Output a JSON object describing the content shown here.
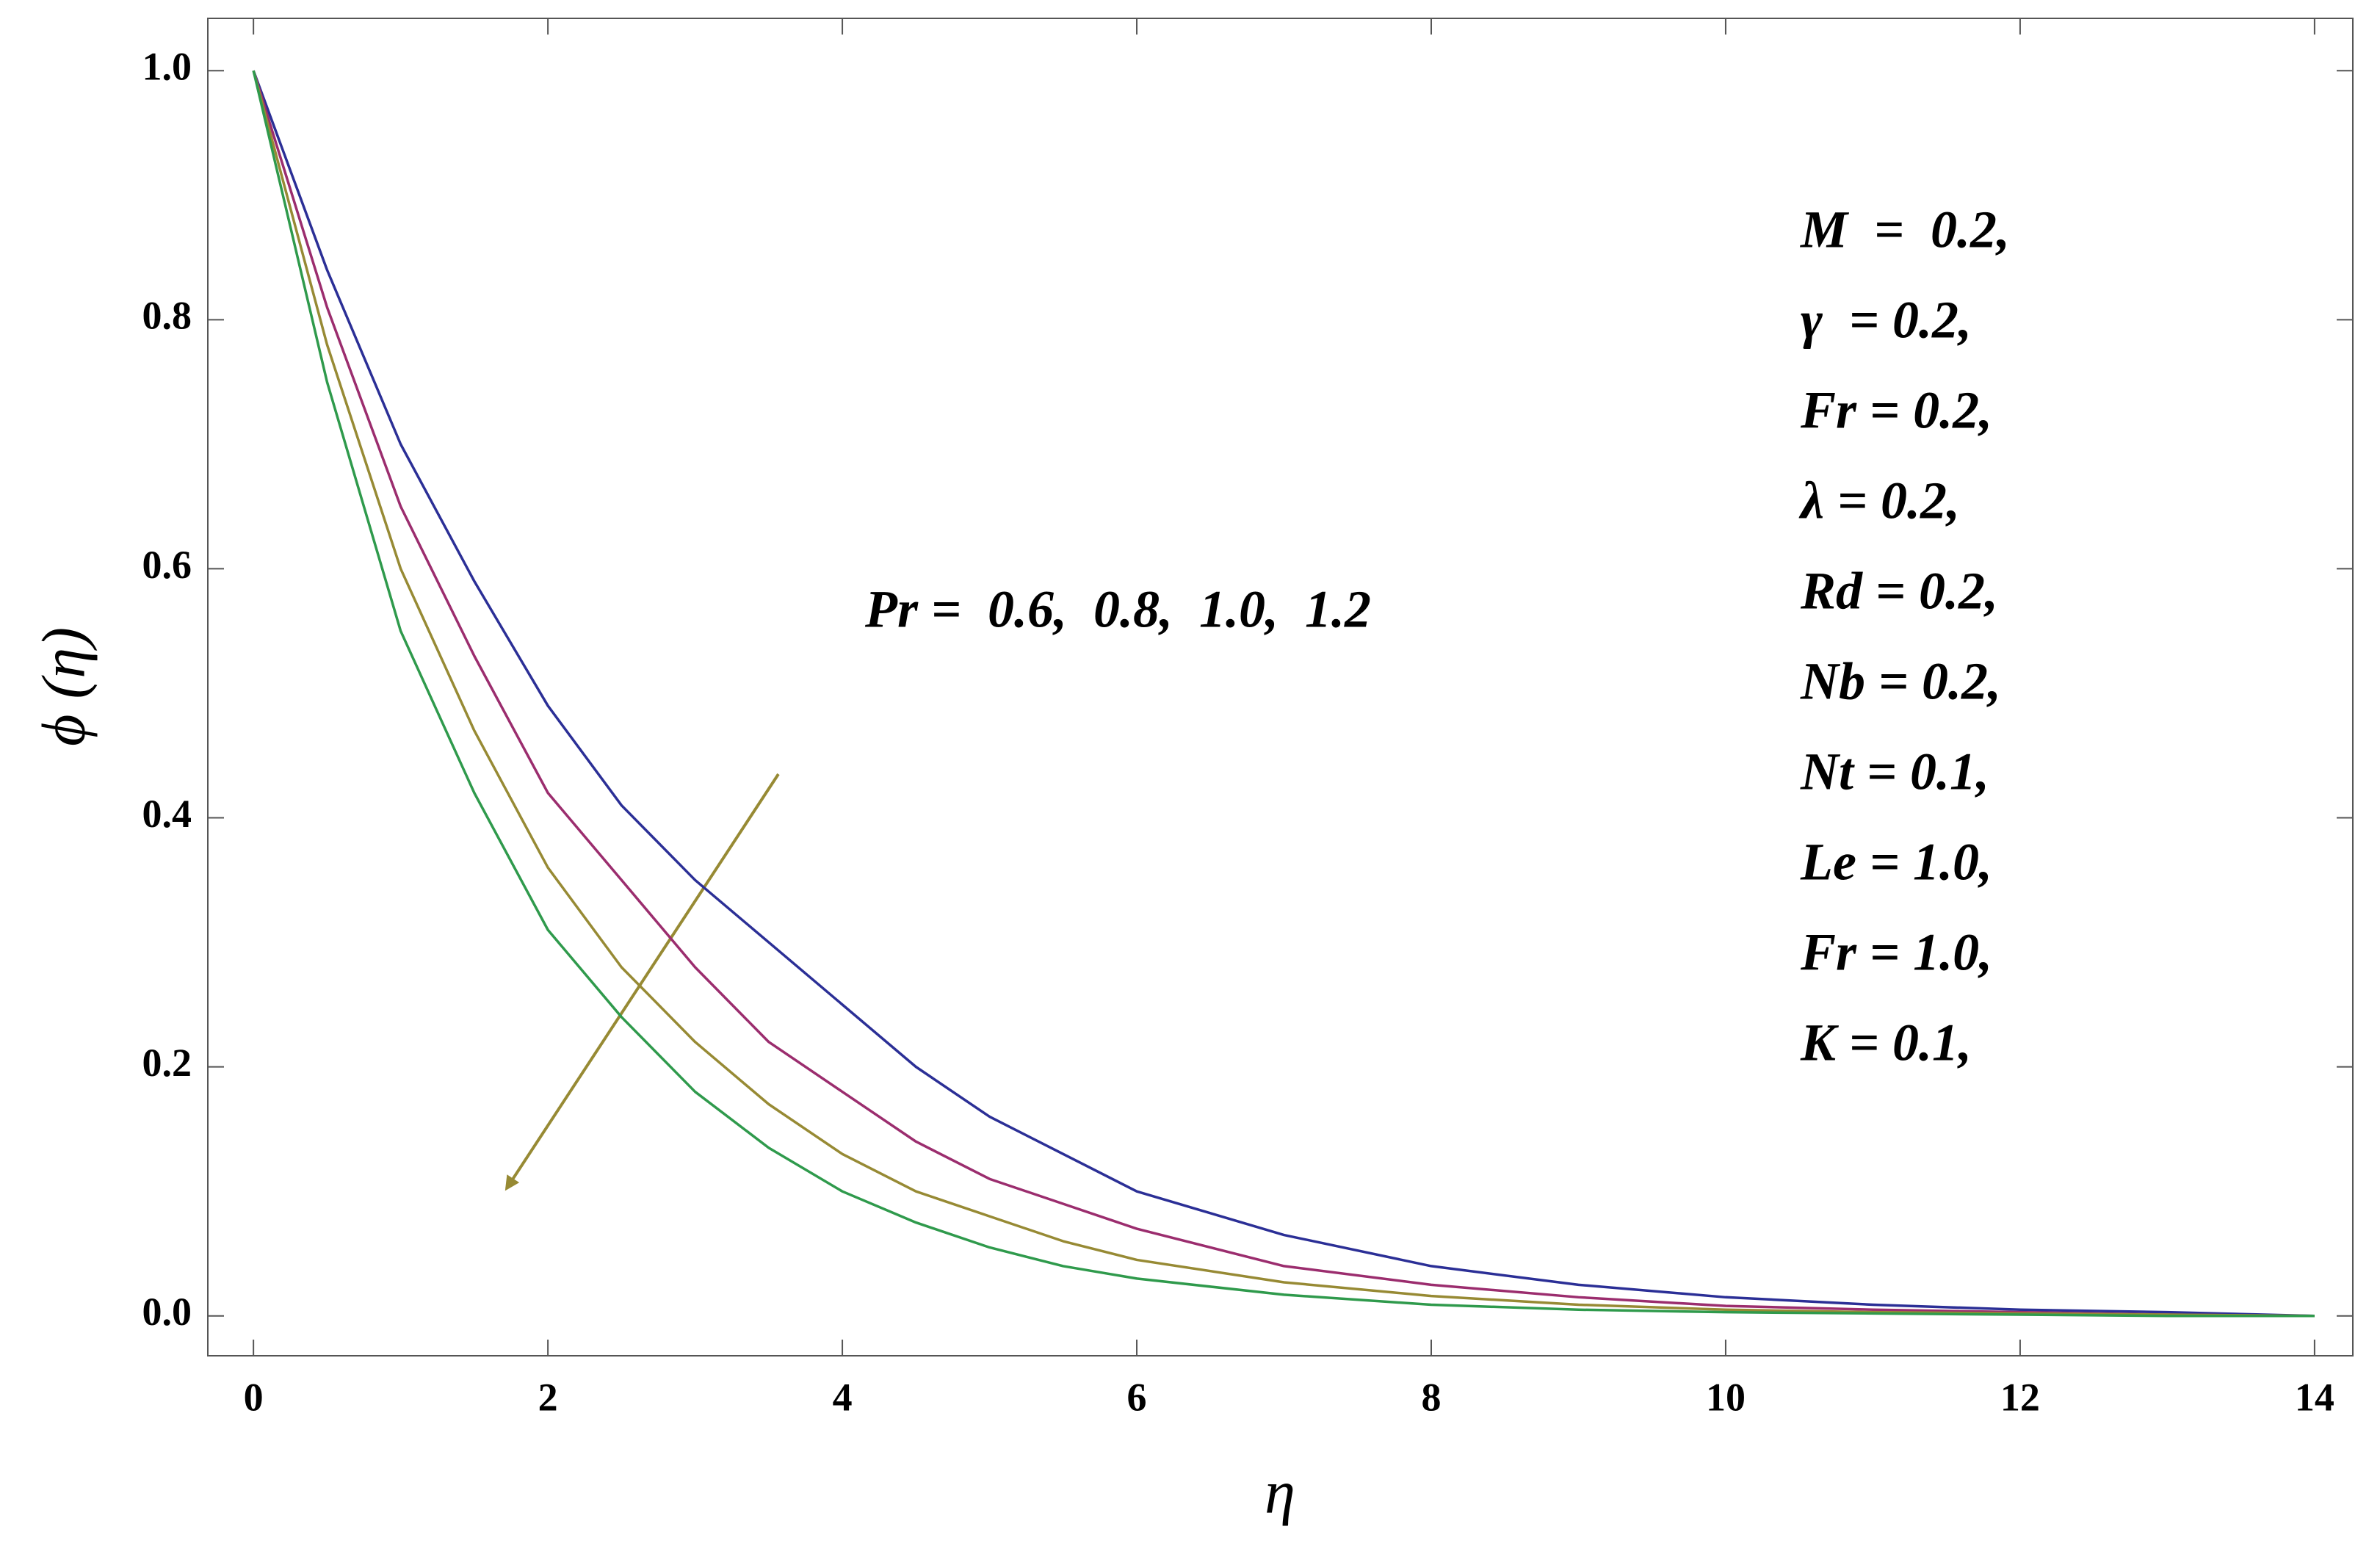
{
  "chart_data": {
    "type": "line",
    "x_label": "η",
    "y_label": "ϕ (η)",
    "annotations": [
      "Pr =  0.6,  0.8,  1.0,  1.2",
      "M  =  0.2,",
      "γ  = 0.2,",
      "Fr = 0.2,",
      "λ = 0.2,",
      "Rd = 0.2,",
      "Nb = 0.2,",
      "Nt = 0.1,",
      "Le = 1.0,",
      "Fr = 1.0,",
      "K = 0.1,"
    ],
    "x": [
      0,
      0.5,
      1,
      1.5,
      2,
      2.5,
      3,
      3.5,
      4,
      4.5,
      5,
      5.5,
      6,
      7,
      8,
      9,
      10,
      11,
      12,
      13,
      14
    ],
    "series": [
      {
        "color": "#2b2f96",
        "values": [
          1,
          0.84,
          0.7,
          0.59,
          0.49,
          0.41,
          0.35,
          0.3,
          0.25,
          0.2,
          0.16,
          0.13,
          0.1,
          0.065,
          0.04,
          0.025,
          0.015,
          0.009,
          0.005,
          0.003,
          0
        ]
      },
      {
        "color": "#9b2d6e",
        "values": [
          1,
          0.81,
          0.65,
          0.53,
          0.42,
          0.35,
          0.28,
          0.22,
          0.18,
          0.14,
          0.11,
          0.09,
          0.07,
          0.04,
          0.025,
          0.015,
          0.008,
          0.005,
          0.003,
          0.001,
          0
        ]
      },
      {
        "color": "#978a34",
        "values": [
          1,
          0.78,
          0.6,
          0.47,
          0.36,
          0.28,
          0.22,
          0.17,
          0.13,
          0.1,
          0.08,
          0.06,
          0.045,
          0.027,
          0.016,
          0.009,
          0.005,
          0.003,
          0.002,
          0.001,
          0
        ]
      },
      {
        "color": "#2f9a4c",
        "values": [
          1,
          0.75,
          0.55,
          0.42,
          0.31,
          0.24,
          0.18,
          0.135,
          0.1,
          0.075,
          0.055,
          0.04,
          0.03,
          0.017,
          0.009,
          0.005,
          0.003,
          0.002,
          0.001,
          0,
          0
        ]
      }
    ],
    "xlim": [
      -0.31,
      14.26
    ],
    "ylim": [
      -0.032,
      1.042
    ],
    "xticks": [
      0,
      2,
      4,
      6,
      8,
      10,
      12,
      14
    ],
    "yticks": [
      {
        "value": 0,
        "label": "0.0"
      },
      {
        "value": 0.2,
        "label": "0.2"
      },
      {
        "value": 0.4,
        "label": "0.4"
      },
      {
        "value": 0.6,
        "label": "0.6"
      },
      {
        "value": 0.8,
        "label": "0.8"
      },
      {
        "value": 1,
        "label": "1.0"
      }
    ]
  }
}
